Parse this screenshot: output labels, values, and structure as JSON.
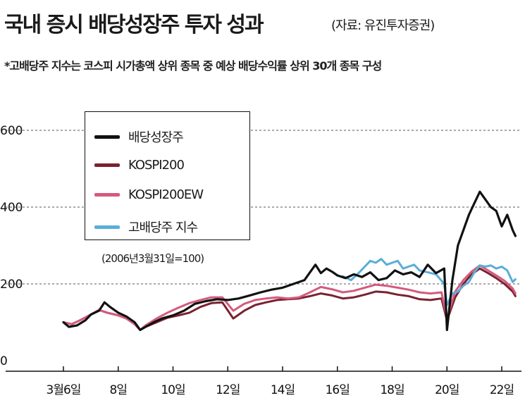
{
  "title": "국내 증시 배당성장주 투자 성과",
  "source": "(자료: 유진투자증권)",
  "note": "*고배당주 지수는 코스피 시가총액 상위 종목 중 예상 배당수익률 상위 30개 종목 구성",
  "baseline_note": "(2006년3월31일=100)",
  "colors": {
    "배당성장주": "#111111",
    "KOSPI200": "#7a2230",
    "KOSPI200EW": "#d45a7e",
    "고배당주 지수": "#5aaed8"
  },
  "chart_data": {
    "type": "line",
    "x_unit": "year (2-digit, 20xx)",
    "ylim": [
      0,
      600
    ],
    "yticks": [
      {
        "value": 0,
        "label": "0"
      },
      {
        "value": 200,
        "label": "200"
      },
      {
        "value": 400,
        "label": "400"
      },
      {
        "value": 600,
        "label": "600"
      }
    ],
    "xticks": [
      {
        "value": 6,
        "label": "3월6일"
      },
      {
        "value": 8,
        "label": "8일"
      },
      {
        "value": 10,
        "label": "10일"
      },
      {
        "value": 12,
        "label": "12일"
      },
      {
        "value": 14,
        "label": "14일"
      },
      {
        "value": 16,
        "label": "16일"
      },
      {
        "value": 18,
        "label": "18일"
      },
      {
        "value": 20,
        "label": "20일"
      },
      {
        "value": 22,
        "label": "22일"
      }
    ],
    "grid": "horizontal dashed at 200, 400, 600",
    "legend_position": "top-left",
    "series": [
      {
        "name": "배당성장주",
        "x": [
          6.0,
          6.2,
          6.5,
          6.8,
          7.0,
          7.3,
          7.5,
          7.7,
          8.0,
          8.3,
          8.6,
          8.8,
          9.0,
          9.3,
          9.6,
          10.0,
          10.4,
          10.8,
          11.2,
          11.6,
          12.0,
          12.4,
          12.8,
          13.2,
          13.6,
          14.0,
          14.4,
          14.8,
          15.0,
          15.2,
          15.4,
          15.6,
          15.8,
          16.0,
          16.3,
          16.6,
          16.9,
          17.2,
          17.5,
          17.8,
          18.1,
          18.4,
          18.7,
          19.0,
          19.3,
          19.6,
          19.9,
          20.0,
          20.2,
          20.4,
          20.6,
          20.8,
          21.0,
          21.2,
          21.4,
          21.6,
          21.8,
          22.0,
          22.2,
          22.4,
          22.5
        ],
        "y": [
          100,
          88,
          92,
          105,
          120,
          130,
          152,
          140,
          125,
          115,
          100,
          80,
          88,
          100,
          110,
          118,
          130,
          148,
          155,
          160,
          158,
          162,
          170,
          178,
          185,
          190,
          200,
          210,
          230,
          250,
          228,
          240,
          232,
          222,
          215,
          225,
          218,
          230,
          210,
          215,
          235,
          225,
          230,
          218,
          250,
          228,
          240,
          80,
          210,
          300,
          340,
          380,
          410,
          440,
          420,
          400,
          390,
          350,
          380,
          340,
          325
        ]
      },
      {
        "name": "KOSPI200",
        "x": [
          6.0,
          6.3,
          6.6,
          7.0,
          7.3,
          7.6,
          8.0,
          8.3,
          8.6,
          8.8,
          9.0,
          9.4,
          9.8,
          10.2,
          10.6,
          11.0,
          11.4,
          11.8,
          12.2,
          12.6,
          13.0,
          13.4,
          13.8,
          14.2,
          14.6,
          15.0,
          15.4,
          15.8,
          16.2,
          16.6,
          17.0,
          17.4,
          17.8,
          18.2,
          18.6,
          19.0,
          19.4,
          19.8,
          20.0,
          20.3,
          20.6,
          20.9,
          21.2,
          21.5,
          21.8,
          22.1,
          22.4,
          22.5
        ],
        "y": [
          100,
          95,
          105,
          120,
          132,
          125,
          118,
          110,
          95,
          80,
          88,
          100,
          112,
          118,
          125,
          140,
          150,
          152,
          110,
          130,
          145,
          152,
          158,
          160,
          162,
          168,
          175,
          170,
          162,
          165,
          172,
          180,
          178,
          172,
          168,
          160,
          158,
          162,
          105,
          165,
          200,
          225,
          240,
          228,
          215,
          200,
          180,
          168
        ]
      },
      {
        "name": "KOSPI200EW",
        "x": [
          6.0,
          6.3,
          6.6,
          7.0,
          7.3,
          7.6,
          8.0,
          8.3,
          8.6,
          8.8,
          9.0,
          9.4,
          9.8,
          10.2,
          10.6,
          11.0,
          11.4,
          11.8,
          12.2,
          12.6,
          13.0,
          13.4,
          13.8,
          14.2,
          14.6,
          15.0,
          15.4,
          15.8,
          16.2,
          16.6,
          17.0,
          17.4,
          17.8,
          18.2,
          18.6,
          19.0,
          19.4,
          19.8,
          20.0,
          20.3,
          20.6,
          20.9,
          21.2,
          21.5,
          21.8,
          22.1,
          22.4,
          22.5
        ],
        "y": [
          100,
          95,
          105,
          120,
          132,
          125,
          118,
          110,
          95,
          80,
          92,
          110,
          125,
          138,
          150,
          158,
          165,
          165,
          130,
          148,
          158,
          162,
          165,
          162,
          165,
          178,
          192,
          186,
          178,
          182,
          190,
          198,
          195,
          190,
          185,
          178,
          175,
          178,
          110,
          180,
          210,
          232,
          248,
          235,
          222,
          208,
          188,
          175
        ]
      },
      {
        "name": "고배당주 지수",
        "x": [
          16.2,
          16.5,
          16.8,
          17.0,
          17.2,
          17.4,
          17.6,
          17.8,
          18.0,
          18.2,
          18.4,
          18.6,
          18.8,
          19.0,
          19.3,
          19.6,
          19.9,
          20.0,
          20.2,
          20.4,
          20.6,
          20.8,
          21.0,
          21.2,
          21.4,
          21.6,
          21.8,
          22.0,
          22.2,
          22.4,
          22.5
        ],
        "y": [
          220,
          210,
          230,
          245,
          260,
          255,
          265,
          250,
          255,
          260,
          240,
          245,
          250,
          235,
          230,
          225,
          200,
          145,
          175,
          180,
          195,
          205,
          230,
          248,
          245,
          248,
          240,
          245,
          235,
          205,
          212
        ]
      }
    ]
  }
}
